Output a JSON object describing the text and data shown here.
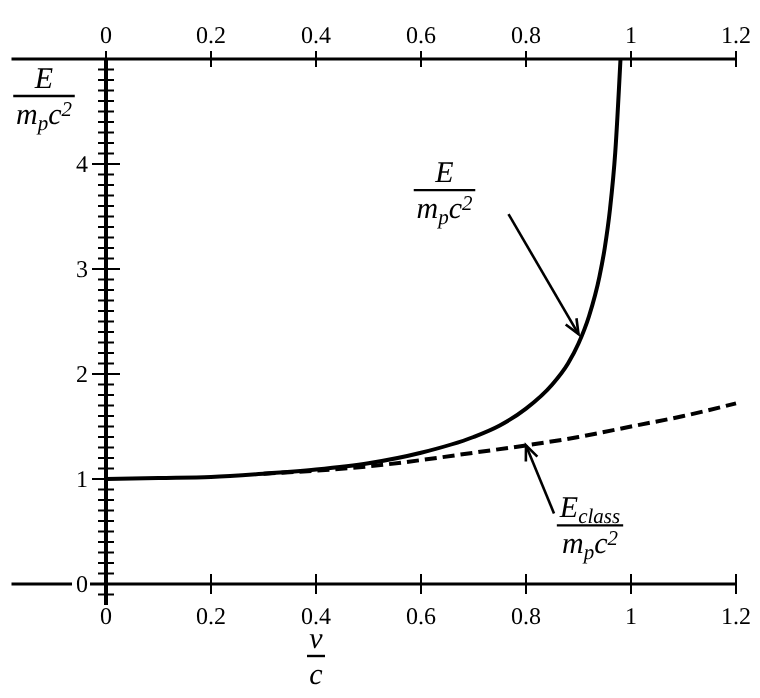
{
  "chart_data": {
    "type": "line",
    "xlabel": "v\nc",
    "ylabel": "E\nm$_{p}$c$^{2}$",
    "xlim": [
      -0.18,
      1.2
    ],
    "x2lim": [
      -0.18,
      1.2
    ],
    "ylim": [
      -0.2,
      5
    ],
    "xticks": [
      0,
      0.2,
      0.4,
      0.6,
      0.8,
      1,
      1.2
    ],
    "x2ticks": [
      0,
      0.2,
      0.4,
      0.6,
      0.8,
      1,
      1.2
    ],
    "yticks": [
      {
        "value": -0.1,
        "label": null
      },
      0,
      {
        "value": 0.1,
        "label": null
      },
      {
        "value": 0.2,
        "label": null
      },
      {
        "value": 0.3,
        "label": null
      },
      {
        "value": 0.4,
        "label": null
      },
      {
        "value": 0.5,
        "label": null
      },
      {
        "value": 0.6,
        "label": null
      },
      {
        "value": 0.7,
        "label": null
      },
      {
        "value": 0.8,
        "label": null
      },
      {
        "value": 0.9,
        "label": null
      },
      1,
      {
        "value": 1.1,
        "label": null
      },
      {
        "value": 1.2,
        "label": null
      },
      {
        "value": 1.3,
        "label": null
      },
      {
        "value": 1.4,
        "label": null
      },
      {
        "value": 1.5,
        "label": null
      },
      {
        "value": 1.6,
        "label": null
      },
      {
        "value": 1.7,
        "label": null
      },
      {
        "value": 1.8,
        "label": null
      },
      {
        "value": 1.9,
        "label": null
      },
      2,
      {
        "value": 2.1,
        "label": null
      },
      {
        "value": 2.2,
        "label": null
      },
      {
        "value": 2.3,
        "label": null
      },
      {
        "value": 2.4,
        "label": null
      },
      {
        "value": 2.5,
        "label": null
      },
      {
        "value": 2.6,
        "label": null
      },
      {
        "value": 2.7,
        "label": null
      },
      {
        "value": 2.8,
        "label": null
      },
      {
        "value": 2.9,
        "label": null
      },
      3,
      {
        "value": 3.1,
        "label": null
      },
      {
        "value": 3.2,
        "label": null
      },
      {
        "value": 3.3,
        "label": null
      },
      {
        "value": 3.4,
        "label": null
      },
      {
        "value": 3.5,
        "label": null
      },
      {
        "value": 3.6,
        "label": null
      },
      {
        "value": 3.7,
        "label": null
      },
      {
        "value": 3.8,
        "label": null
      },
      {
        "value": 3.9,
        "label": null
      },
      4,
      {
        "value": 4.1,
        "label": null
      },
      {
        "value": 4.2,
        "label": null
      },
      {
        "value": 4.3,
        "label": null
      },
      {
        "value": 4.4,
        "label": null
      },
      {
        "value": 4.5,
        "label": null
      },
      {
        "value": 4.6,
        "label": null
      },
      {
        "value": 4.7,
        "label": null
      },
      {
        "value": 4.8,
        "label": null
      },
      {
        "value": 4.9,
        "label": null
      }
    ],
    "grid": false,
    "marker": "none",
    "series": [
      {
        "color": "#000000",
        "line_style": "solid",
        "x": [
          0,
          0.1,
          0.2,
          0.3,
          0.4,
          0.5,
          0.6,
          0.7,
          0.75,
          0.8,
          0.85,
          0.88,
          0.9,
          0.92,
          0.94,
          0.95,
          0.96,
          0.97,
          0.98
        ],
        "values": [
          1,
          1.01,
          1.02,
          1.05,
          1.09,
          1.15,
          1.25,
          1.4,
          1.51,
          1.67,
          1.9,
          2.1,
          2.29,
          2.55,
          2.93,
          3.2,
          3.57,
          4.11,
          5
        ]
      },
      {
        "color": "#000000",
        "line_style": "dashed",
        "x": [
          0.3,
          0.4,
          0.5,
          0.6,
          0.7,
          0.8,
          0.9,
          1,
          1.1,
          1.2
        ],
        "values": [
          1.05,
          1.08,
          1.12,
          1.18,
          1.25,
          1.32,
          1.4,
          1.5,
          1.6,
          1.72
        ]
      }
    ],
    "annotations": [
      {
        "text": "E\nm$_{p}$c$^{2}$",
        "x": 0.9,
        "y": 2.38
      },
      {
        "text": "E$_{class}$\nm$_{p}$c$^{2}$",
        "x": 0.8,
        "y": 1.32
      }
    ]
  }
}
